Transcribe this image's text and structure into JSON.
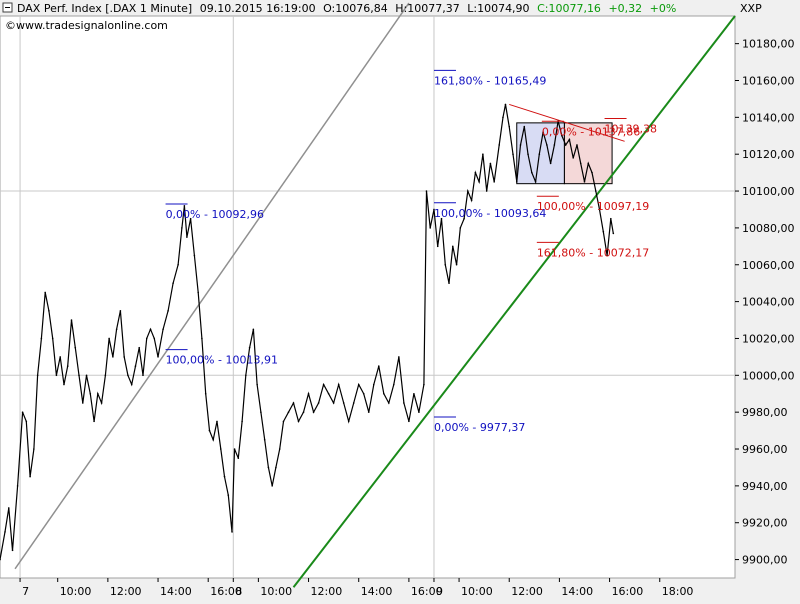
{
  "header": {
    "instrument": "DAX Perf. Index [.DAX  1 Minute]",
    "datetime": "09.10.2015 16:19:00",
    "open": "O:10076,84",
    "high": "H:10077,37",
    "low": "L:10074,90",
    "close": "C:10077,16",
    "change": "+0,32",
    "change_pct": "+0%",
    "source": "www.tradesignalonline.com",
    "axis_title": "XXP",
    "copyright_icon": "copyright-icon"
  },
  "colors": {
    "background": "#ffffff",
    "panel": "#f0f0f0",
    "price_line": "#000000",
    "trendline_green": "#1a8a1a",
    "trendline_gray": "#909090",
    "fib_blue": "#1010c0",
    "fib_red": "#d01010",
    "box_blue": "#c8cdf0",
    "box_red": "#f0c8c8"
  },
  "chart_data": {
    "type": "line",
    "ylim": [
      9890,
      10195
    ],
    "yticks": [
      9900,
      9920,
      9940,
      9960,
      9980,
      10000,
      10020,
      10040,
      10060,
      10080,
      10100,
      10120,
      10140,
      10160,
      10180
    ],
    "ytick_labels": [
      "9900,00",
      "9920,00",
      "9940,00",
      "9960,00",
      "9980,00",
      "10000,00",
      "10020,00",
      "10040,00",
      "10060,00",
      "10080,00",
      "10100,00",
      "10120,00",
      "10140,00",
      "10160,00",
      "10180,00"
    ],
    "xticks": [
      {
        "label": "7",
        "t": 0.5
      },
      {
        "label": "10:00",
        "t": 2.0
      },
      {
        "label": "12:00",
        "t": 4.0
      },
      {
        "label": "14:00",
        "t": 6.0
      },
      {
        "label": "16:00",
        "t": 8.0
      },
      {
        "label": "8",
        "t": 9.0
      },
      {
        "label": "10:00",
        "t": 10.0
      },
      {
        "label": "12:00",
        "t": 12.0
      },
      {
        "label": "14:00",
        "t": 14.0
      },
      {
        "label": "16:00",
        "t": 16.0
      },
      {
        "label": "9",
        "t": 17.0
      },
      {
        "label": "10:00",
        "t": 18.0
      },
      {
        "label": "12:00",
        "t": 20.0
      },
      {
        "label": "14:00",
        "t": 22.0
      },
      {
        "label": "16:00",
        "t": 24.0
      },
      {
        "label": "18:00",
        "t": 26.0
      }
    ],
    "xlim": [
      -0.3,
      29.0
    ],
    "series": [
      {
        "points": [
          [
            -0.3,
            9900
          ],
          [
            -0.1,
            9915
          ],
          [
            0.05,
            9928
          ],
          [
            0.2,
            9905
          ],
          [
            0.4,
            9940
          ],
          [
            0.6,
            9980
          ],
          [
            0.75,
            9975
          ],
          [
            0.9,
            9945
          ],
          [
            1.05,
            9960
          ],
          [
            1.2,
            10000
          ],
          [
            1.35,
            10020
          ],
          [
            1.5,
            10045
          ],
          [
            1.65,
            10035
          ],
          [
            1.8,
            10020
          ],
          [
            1.95,
            10000
          ],
          [
            2.1,
            10010
          ],
          [
            2.25,
            9995
          ],
          [
            2.4,
            10005
          ],
          [
            2.55,
            10030
          ],
          [
            2.7,
            10015
          ],
          [
            2.85,
            10000
          ],
          [
            3.0,
            9985
          ],
          [
            3.15,
            10000
          ],
          [
            3.3,
            9990
          ],
          [
            3.45,
            9975
          ],
          [
            3.6,
            9990
          ],
          [
            3.75,
            9985
          ],
          [
            3.9,
            10000
          ],
          [
            4.05,
            10020
          ],
          [
            4.2,
            10010
          ],
          [
            4.35,
            10025
          ],
          [
            4.5,
            10035
          ],
          [
            4.65,
            10010
          ],
          [
            4.8,
            10000
          ],
          [
            4.95,
            9995
          ],
          [
            5.1,
            10005
          ],
          [
            5.25,
            10015
          ],
          [
            5.4,
            10000
          ],
          [
            5.55,
            10020
          ],
          [
            5.7,
            10025
          ],
          [
            5.85,
            10020
          ],
          [
            6.0,
            10010
          ],
          [
            6.2,
            10025
          ],
          [
            6.4,
            10035
          ],
          [
            6.6,
            10050
          ],
          [
            6.8,
            10060
          ],
          [
            6.95,
            10080
          ],
          [
            7.05,
            10092
          ],
          [
            7.15,
            10075
          ],
          [
            7.3,
            10085
          ],
          [
            7.45,
            10065
          ],
          [
            7.6,
            10045
          ],
          [
            7.75,
            10020
          ],
          [
            7.9,
            9990
          ],
          [
            8.05,
            9970
          ],
          [
            8.2,
            9965
          ],
          [
            8.35,
            9975
          ],
          [
            8.5,
            9960
          ],
          [
            8.65,
            9945
          ],
          [
            8.8,
            9935
          ],
          [
            8.95,
            9915
          ],
          [
            9.05,
            9960
          ],
          [
            9.2,
            9955
          ],
          [
            9.35,
            9975
          ],
          [
            9.5,
            10000
          ],
          [
            9.65,
            10015
          ],
          [
            9.8,
            10025
          ],
          [
            9.95,
            9995
          ],
          [
            10.1,
            9980
          ],
          [
            10.25,
            9965
          ],
          [
            10.4,
            9950
          ],
          [
            10.55,
            9940
          ],
          [
            10.7,
            9950
          ],
          [
            10.85,
            9960
          ],
          [
            11.0,
            9975
          ],
          [
            11.2,
            9980
          ],
          [
            11.4,
            9985
          ],
          [
            11.6,
            9975
          ],
          [
            11.8,
            9980
          ],
          [
            12.0,
            9990
          ],
          [
            12.2,
            9980
          ],
          [
            12.4,
            9985
          ],
          [
            12.6,
            9995
          ],
          [
            12.8,
            9990
          ],
          [
            13.0,
            9985
          ],
          [
            13.2,
            9995
          ],
          [
            13.4,
            9985
          ],
          [
            13.6,
            9975
          ],
          [
            13.8,
            9985
          ],
          [
            14.0,
            9995
          ],
          [
            14.2,
            9990
          ],
          [
            14.4,
            9980
          ],
          [
            14.6,
            9995
          ],
          [
            14.8,
            10005
          ],
          [
            15.0,
            9990
          ],
          [
            15.2,
            9985
          ],
          [
            15.4,
            9995
          ],
          [
            15.6,
            10010
          ],
          [
            15.8,
            9985
          ],
          [
            16.0,
            9975
          ],
          [
            16.2,
            9990
          ],
          [
            16.4,
            9980
          ],
          [
            16.6,
            9995
          ],
          [
            16.7,
            10100
          ],
          [
            16.85,
            10080
          ],
          [
            17.0,
            10090
          ],
          [
            17.15,
            10070
          ],
          [
            17.3,
            10085
          ],
          [
            17.45,
            10060
          ],
          [
            17.6,
            10050
          ],
          [
            17.75,
            10070
          ],
          [
            17.9,
            10060
          ],
          [
            18.05,
            10080
          ],
          [
            18.2,
            10085
          ],
          [
            18.35,
            10100
          ],
          [
            18.5,
            10095
          ],
          [
            18.65,
            10110
          ],
          [
            18.8,
            10105
          ],
          [
            18.95,
            10120
          ],
          [
            19.1,
            10100
          ],
          [
            19.25,
            10115
          ],
          [
            19.4,
            10105
          ],
          [
            19.6,
            10125
          ],
          [
            19.75,
            10140
          ],
          [
            19.85,
            10147
          ],
          [
            20.0,
            10135
          ],
          [
            20.15,
            10120
          ],
          [
            20.3,
            10105
          ],
          [
            20.45,
            10125
          ],
          [
            20.6,
            10135
          ],
          [
            20.75,
            10120
          ],
          [
            20.9,
            10110
          ],
          [
            21.05,
            10105
          ],
          [
            21.2,
            10120
          ],
          [
            21.35,
            10132
          ],
          [
            21.5,
            10125
          ],
          [
            21.65,
            10115
          ],
          [
            21.8,
            10125
          ],
          [
            21.95,
            10138
          ],
          [
            22.1,
            10130
          ],
          [
            22.25,
            10125
          ],
          [
            22.4,
            10128
          ],
          [
            22.55,
            10118
          ],
          [
            22.7,
            10125
          ],
          [
            22.85,
            10115
          ],
          [
            23.0,
            10105
          ],
          [
            23.15,
            10115
          ],
          [
            23.3,
            10110
          ],
          [
            23.45,
            10100
          ],
          [
            23.6,
            10090
          ],
          [
            23.75,
            10078
          ],
          [
            23.9,
            10065
          ],
          [
            24.05,
            10085
          ],
          [
            24.15,
            10077
          ]
        ]
      }
    ],
    "trendlines": [
      {
        "name": "green",
        "from": [
          11.4,
          9885
        ],
        "to": [
          29.0,
          10195
        ]
      },
      {
        "name": "gray",
        "from": [
          0.3,
          9895
        ],
        "to": [
          16.0,
          10202
        ]
      },
      {
        "name": "red",
        "from": [
          20.0,
          10147
        ],
        "to": [
          24.6,
          10127
        ]
      }
    ],
    "annotations": [
      {
        "text": "161,80% - 10165,49",
        "color": "blue",
        "x": 17.0,
        "y": 10165.49
      },
      {
        "text": "0,00% - 10092,96",
        "color": "blue",
        "x": 6.3,
        "y": 10092.96
      },
      {
        "text": "100,00% - 10093,64",
        "color": "blue",
        "x": 17.0,
        "y": 10093.64
      },
      {
        "text": "100,00% - 10013,91",
        "color": "blue",
        "x": 6.3,
        "y": 10013.91
      },
      {
        "text": "0,00% - 9977,37",
        "color": "blue",
        "x": 17.0,
        "y": 9977.37
      },
      {
        "text": "0,00% - 10137,86",
        "color": "red",
        "x": 21.3,
        "y": 10137.86
      },
      {
        "text": "10139,38",
        "color": "red",
        "x": 23.8,
        "y": 10139.38
      },
      {
        "text": "100,00% - 10097,19",
        "color": "red",
        "x": 21.1,
        "y": 10097.19
      },
      {
        "text": "161,80% - 10072,17",
        "color": "red",
        "x": 21.1,
        "y": 10072.17
      }
    ],
    "fib_boxes": [
      {
        "name": "blue-box",
        "x0": 20.3,
        "x1": 22.2,
        "y0": 10104,
        "y1": 10137
      },
      {
        "name": "red-box",
        "x0": 22.2,
        "x1": 24.1,
        "y0": 10104,
        "y1": 10137
      }
    ]
  }
}
